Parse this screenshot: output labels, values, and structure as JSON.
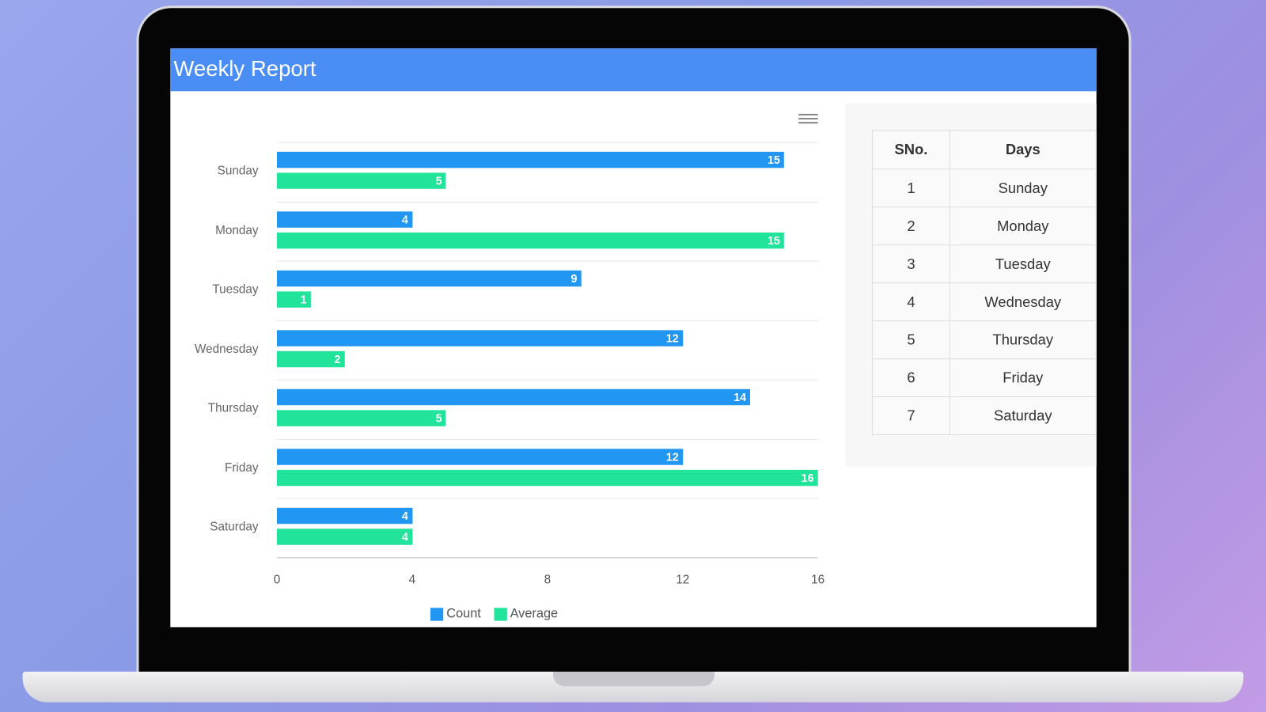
{
  "header": {
    "title": "Weekly Report"
  },
  "colors": {
    "header": "#4a8ef5",
    "count": "#2196f3",
    "average": "#22e39a"
  },
  "chart_data": {
    "type": "bar",
    "orientation": "horizontal",
    "categories": [
      "Sunday",
      "Monday",
      "Tuesday",
      "Wednesday",
      "Thursday",
      "Friday",
      "Saturday"
    ],
    "series": [
      {
        "name": "Count",
        "values": [
          15,
          4,
          9,
          12,
          14,
          12,
          4
        ]
      },
      {
        "name": "Average",
        "values": [
          5,
          15,
          1,
          2,
          5,
          16,
          4
        ]
      }
    ],
    "xlim": [
      0,
      16
    ],
    "xticks": [
      "0",
      "4",
      "8",
      "12",
      "16"
    ],
    "legend": "bottom-center",
    "grid": true
  },
  "table": {
    "headers": [
      "SNo.",
      "Days"
    ],
    "rows": [
      [
        "1",
        "Sunday"
      ],
      [
        "2",
        "Monday"
      ],
      [
        "3",
        "Tuesday"
      ],
      [
        "4",
        "Wednesday"
      ],
      [
        "5",
        "Thursday"
      ],
      [
        "6",
        "Friday"
      ],
      [
        "7",
        "Saturday"
      ]
    ]
  }
}
